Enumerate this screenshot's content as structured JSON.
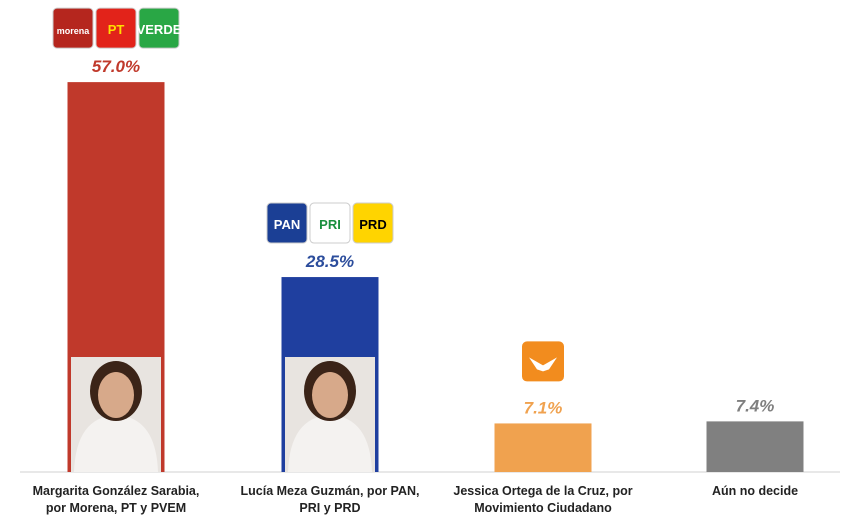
{
  "chart_data": {
    "type": "bar",
    "categories": [
      "Margarita González Sarabia,\npor Morena, PT y PVEM",
      "Lucía Meza Guzmán, por PAN,\nPRI y PRD",
      "Jessica Ortega de la Cruz, por\nMovimiento Ciudadano",
      "Aún no decide"
    ],
    "values": [
      57.0,
      28.5,
      7.1,
      7.4
    ],
    "value_labels": [
      "57.0%",
      "28.5%",
      "7.1%",
      "7.4%"
    ],
    "colors": [
      "#c0392b",
      "#1f3f9f",
      "#f0a24f",
      "#808080"
    ],
    "label_colors": [
      "#c0392b",
      "#2c4d9c",
      "#f0a24f",
      "#7f7f7f"
    ],
    "party_logos": [
      [
        "morena",
        "PT",
        "VERDE"
      ],
      [
        "PAN",
        "PRI",
        "PRD"
      ],
      [],
      []
    ]
  }
}
